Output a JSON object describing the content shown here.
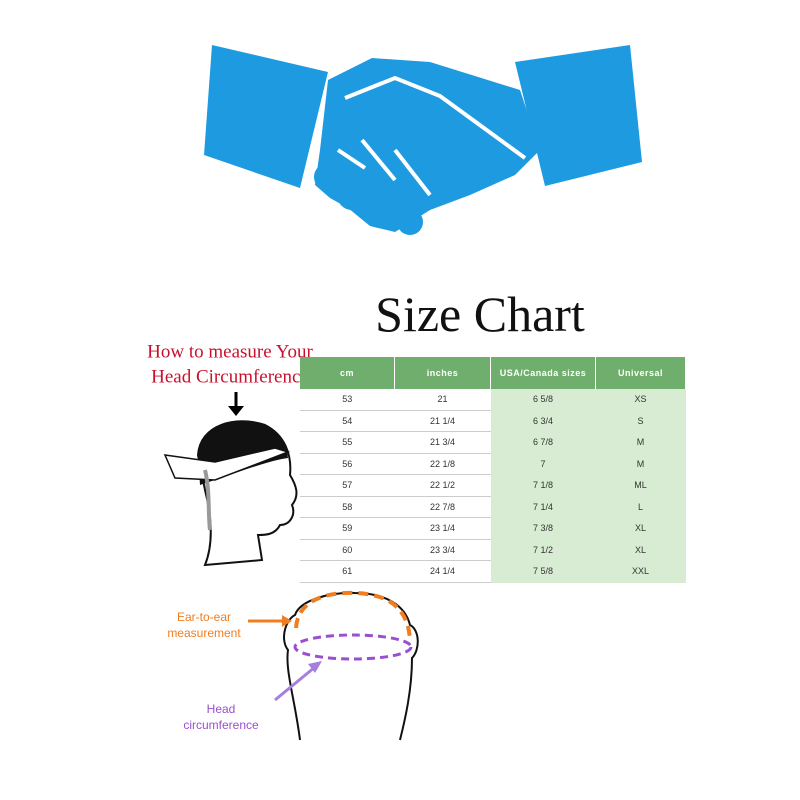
{
  "title": "Size Chart",
  "measure_caption": [
    "How to measure Your",
    "Head Circumference"
  ],
  "table": {
    "headers": [
      "cm",
      "inches",
      "USA/Canada sizes",
      "Universal"
    ],
    "rows": [
      [
        "53",
        "21",
        "6 5/8",
        "XS"
      ],
      [
        "54",
        "21 1/4",
        "6 3/4",
        "S"
      ],
      [
        "55",
        "21 3/4",
        "6 7/8",
        "M"
      ],
      [
        "56",
        "22 1/8",
        "7",
        "M"
      ],
      [
        "57",
        "22 1/2",
        "7 1/8",
        "ML"
      ],
      [
        "58",
        "22 7/8",
        "7 1/4",
        "L"
      ],
      [
        "59",
        "23 1/4",
        "7 3/8",
        "XL"
      ],
      [
        "60",
        "23 3/4",
        "7 1/2",
        "XL"
      ],
      [
        "61",
        "24 1/4",
        "7 5/8",
        "XXL"
      ]
    ]
  },
  "diagram": {
    "ear_to_ear": [
      "Ear-to-ear",
      "measurement"
    ],
    "head_circumference": [
      "Head",
      "circumference"
    ]
  }
}
